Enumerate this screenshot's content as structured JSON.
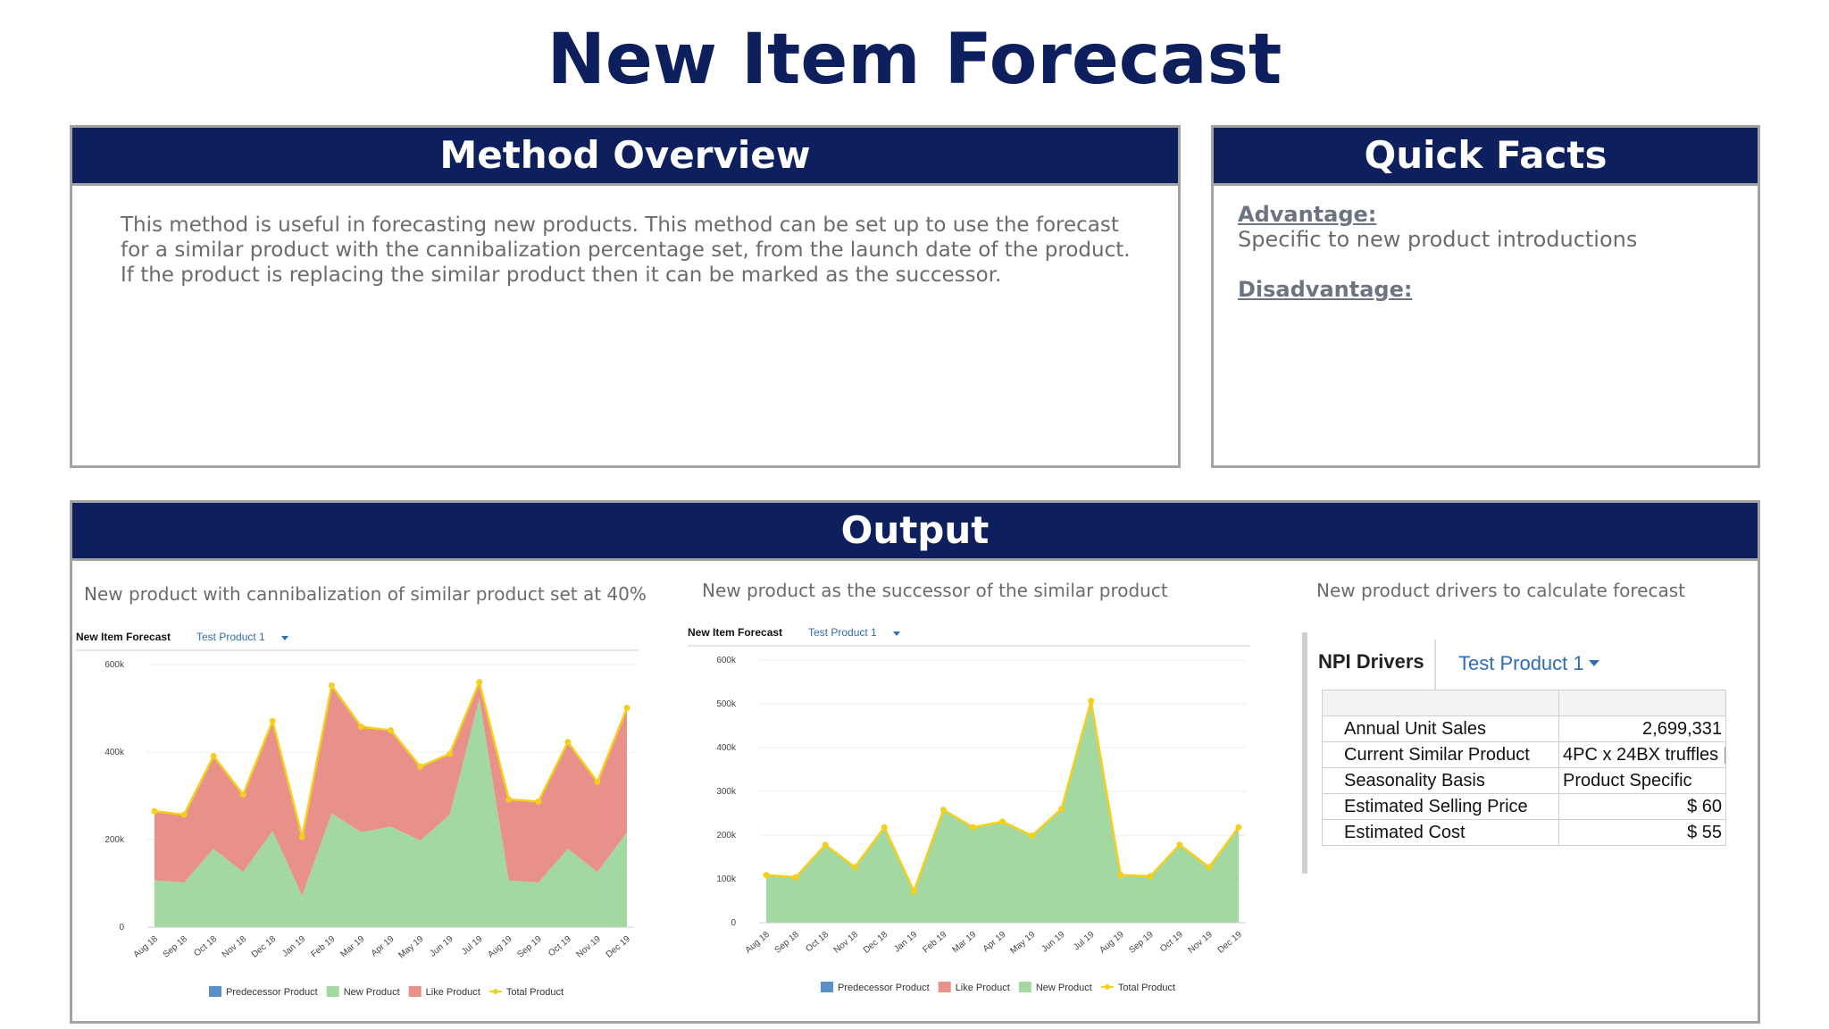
{
  "title": "New Item Forecast",
  "method": {
    "title": "Method Overview",
    "paragraphs": [
      "This method is useful in forecasting new products. This method can be set up to use the forecast for a similar product with the cannibalization percentage set, from the launch date of the product.",
      "If the product is replacing the similar product then it can be marked as the successor."
    ]
  },
  "quick_facts": {
    "title": "Quick Facts",
    "advantage_label": "Advantage:",
    "advantage_text": "Specific to new product introductions",
    "disadvantage_label": "Disadvantage:"
  },
  "output": {
    "title": "Output"
  },
  "drivers": {
    "subtitle": "New product drivers to calculate forecast",
    "title": "NPI Drivers",
    "selector": "Test Product 1",
    "rows": [
      [
        "Annual Unit Sales",
        "2,699,331"
      ],
      [
        "Current Similar Product",
        "4PC x 24BX truffles |"
      ],
      [
        "Seasonality Basis",
        "Product Specific"
      ],
      [
        "Estimated Selling Price",
        "$ 60"
      ],
      [
        "Estimated Cost",
        "$ 55"
      ]
    ]
  },
  "chart_data": [
    {
      "type": "area",
      "subtitle": "New product with cannibalization of similar product set at 40%",
      "title": "New Item Forecast",
      "selector": "Test Product 1",
      "categories": [
        "Aug 18",
        "Sep 18",
        "Oct 18",
        "Nov 18",
        "Dec 18",
        "Jan 19",
        "Feb 19",
        "Mar 19",
        "Apr 19",
        "May 19",
        "Jun 19",
        "Jul 19",
        "Aug 19",
        "Sep 19",
        "Oct 19",
        "Nov 19",
        "Dec 19"
      ],
      "ylim": [
        0,
        600000
      ],
      "yticks": [
        0,
        {
          "value": 200000,
          "label": "200k"
        },
        {
          "value": 400000,
          "label": "400k"
        },
        {
          "value": 600000,
          "label": "600k"
        }
      ],
      "grid": true,
      "series": [
        {
          "name": "Predecessor Product",
          "color": "#5b8ec7"
        },
        {
          "name": "New Product",
          "color": "#a3d9a0",
          "style": "area",
          "values": [
            107000,
            102000,
            179000,
            126000,
            220000,
            72000,
            260000,
            217000,
            230000,
            198000,
            257000,
            522000,
            107000,
            102000,
            179000,
            126000,
            217000
          ]
        },
        {
          "name": "Like Product",
          "color": "#e8918a",
          "style": "area",
          "values": [
            158000,
            155000,
            212000,
            177000,
            251000,
            134000,
            292000,
            241000,
            220000,
            169000,
            139000,
            38000,
            185000,
            185000,
            244000,
            206000,
            284000
          ]
        },
        {
          "name": "Total Product",
          "color": "#f5cf1e",
          "style": "line",
          "values": [
            265000,
            257000,
            391000,
            303000,
            471000,
            206000,
            552000,
            458000,
            450000,
            367000,
            396000,
            560000,
            292000,
            287000,
            423000,
            332000,
            501000
          ]
        }
      ]
    },
    {
      "type": "area",
      "subtitle": "New product as the successor of the similar product",
      "title": "New Item Forecast",
      "selector": "Test Product 1",
      "categories": [
        "Aug 18",
        "Sep 18",
        "Oct 18",
        "Nov 18",
        "Dec 18",
        "Jan 19",
        "Feb 19",
        "Mar 19",
        "Apr 19",
        "May 19",
        "Jun 19",
        "Jul 19",
        "Aug 19",
        "Sep 19",
        "Oct 19",
        "Nov 19",
        "Dec 19"
      ],
      "ylim": [
        0,
        600000
      ],
      "yticks": [
        0,
        {
          "value": 100000,
          "label": "100k"
        },
        {
          "value": 200000,
          "label": "200k"
        },
        {
          "value": 300000,
          "label": "300k"
        },
        {
          "value": 400000,
          "label": "400k"
        },
        {
          "value": 500000,
          "label": "500k"
        },
        {
          "value": 600000,
          "label": "600k"
        }
      ],
      "grid": true,
      "series": [
        {
          "name": "Predecessor Product",
          "color": "#5b8ec7"
        },
        {
          "name": "Like Product",
          "color": "#e8918a"
        },
        {
          "name": "New Product",
          "color": "#a3d9a0",
          "style": "area",
          "values": [
            109000,
            104000,
            178000,
            127000,
            218000,
            72000,
            258000,
            218000,
            231000,
            199000,
            260000,
            507000,
            109000,
            106000,
            178000,
            127000,
            218000
          ]
        },
        {
          "name": "Total Product",
          "color": "#f5cf1e",
          "style": "line",
          "values": [
            109000,
            104000,
            178000,
            127000,
            218000,
            72000,
            258000,
            218000,
            231000,
            199000,
            260000,
            507000,
            109000,
            106000,
            178000,
            127000,
            218000
          ]
        }
      ]
    }
  ]
}
